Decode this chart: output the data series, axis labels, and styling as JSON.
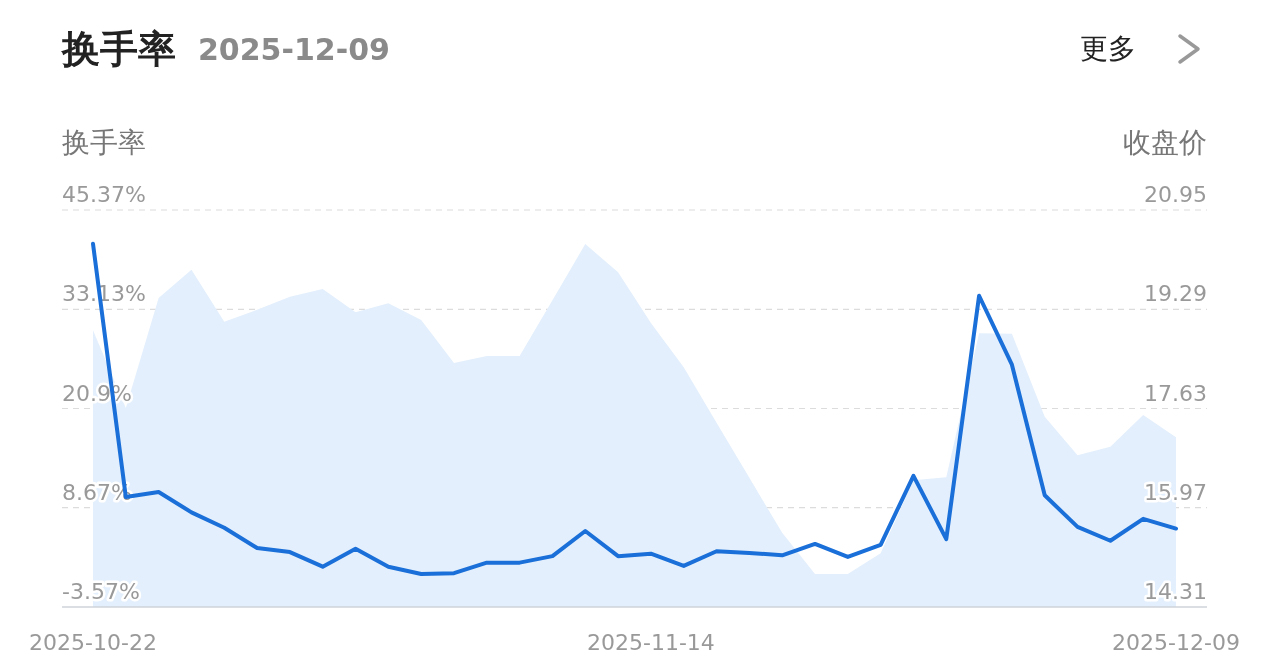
{
  "chart_data": {
    "type": "line",
    "title": "换手率",
    "subtitle": "2025-12-09",
    "ylabel": "换手率",
    "y2label": "收盘价",
    "annotations": [
      "更多"
    ],
    "categories": [
      "2025-10-22",
      null,
      null,
      null,
      null,
      null,
      null,
      null,
      null,
      null,
      null,
      null,
      null,
      null,
      null,
      null,
      null,
      "2025-11-14",
      null,
      null,
      null,
      null,
      null,
      null,
      null,
      null,
      null,
      null,
      null,
      null,
      null,
      null,
      null,
      "2025-12-09"
    ],
    "ylim": [
      -3.57,
      45.37
    ],
    "yticks": [
      {
        "value": -3.57,
        "label": "-3.57%"
      },
      {
        "value": 8.67,
        "label": "8.67%"
      },
      {
        "value": 20.9,
        "label": "20.9%"
      },
      {
        "value": 33.13,
        "label": "33.13%"
      },
      {
        "value": 45.37,
        "label": "45.37%"
      }
    ],
    "y2lim": [
      14.31,
      20.95
    ],
    "y2ticks": [
      14.31,
      15.97,
      17.63,
      19.29,
      20.95
    ],
    "grid": "y",
    "line_style": "solid",
    "marker": "none",
    "series": [
      {
        "type": "area",
        "axis": "y2",
        "color": "#e3effc",
        "values": [
          18.94,
          17.64,
          19.48,
          19.95,
          19.08,
          19.28,
          19.5,
          19.63,
          19.24,
          19.39,
          19.11,
          18.39,
          18.51,
          18.51,
          19.44,
          20.38,
          19.91,
          19.06,
          18.32,
          17.39,
          16.47,
          15.55,
          14.86,
          14.86,
          15.21,
          16.43,
          16.48,
          18.89,
          18.88,
          17.49,
          16.85,
          16.99,
          17.52,
          17.15
        ]
      },
      {
        "color": "#1a6fd8",
        "values": [
          41.2,
          10.0,
          10.6,
          8.1,
          6.2,
          3.7,
          3.2,
          1.4,
          3.6,
          1.4,
          0.5,
          0.6,
          1.9,
          1.9,
          2.7,
          5.8,
          2.7,
          3.0,
          1.5,
          3.3,
          3.1,
          2.8,
          4.2,
          2.6,
          4.1,
          12.6,
          4.8,
          34.8,
          26.3,
          10.2,
          6.3,
          4.6,
          7.3,
          6.1
        ]
      }
    ]
  }
}
